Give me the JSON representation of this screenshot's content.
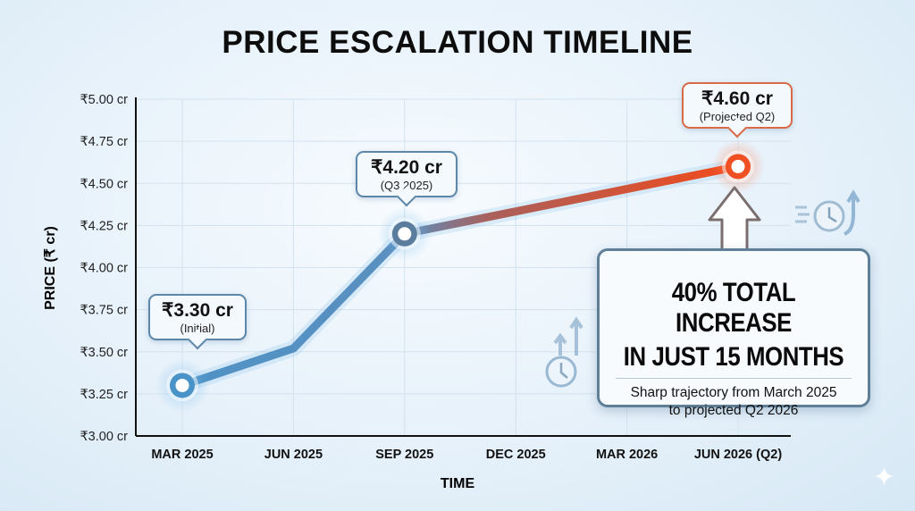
{
  "chart_data": {
    "type": "line",
    "title": "PRICE ESCALATION TIMELINE",
    "xlabel": "TIME",
    "ylabel": "PRICE (₹ cr)",
    "categories": [
      "MAR 2025",
      "JUN 2025",
      "SEP 2025",
      "DEC 2025",
      "MAR 2026",
      "JUN 2026 (Q2)"
    ],
    "yticks": [
      "₹3.00 cr",
      "₹3.25 cr",
      "₹3.50 cr",
      "₹3.75 cr",
      "₹4.00 cr",
      "₹4.25 cr",
      "₹4.50 cr",
      "₹4.75 cr",
      "₹5.00 cr"
    ],
    "ylim": [
      3.0,
      5.0
    ],
    "grid": true,
    "points": [
      {
        "x": "MAR 2025",
        "y": 3.3
      },
      {
        "x": "JUN 2025",
        "y": 3.52
      },
      {
        "x": "SEP 2025",
        "y": 4.2
      },
      {
        "x": "JUN 2026 (Q2)",
        "y": 4.6
      }
    ],
    "annotations": [
      {
        "value": "₹3.30 cr",
        "sub": "(Initial)"
      },
      {
        "value": "₹4.20 cr",
        "sub": "(Q3 2025)"
      },
      {
        "value": "₹4.60 cr",
        "sub": "(Projected Q2)"
      }
    ],
    "colors": {
      "start": "#4a90c4",
      "end": "#f04a1c",
      "axis": "#111111",
      "grid": "#d3e2ee"
    }
  },
  "highlight": {
    "headline_1": "40% TOTAL INCREASE",
    "headline_2": "IN JUST 15 MONTHS",
    "description": "Sharp trajectory from March 2025 to projected Q2 2026"
  },
  "icons": [
    "clock-rising-arrows-icon",
    "fast-clock-arrow-icon",
    "up-arrow-icon",
    "sparkle-icon"
  ]
}
